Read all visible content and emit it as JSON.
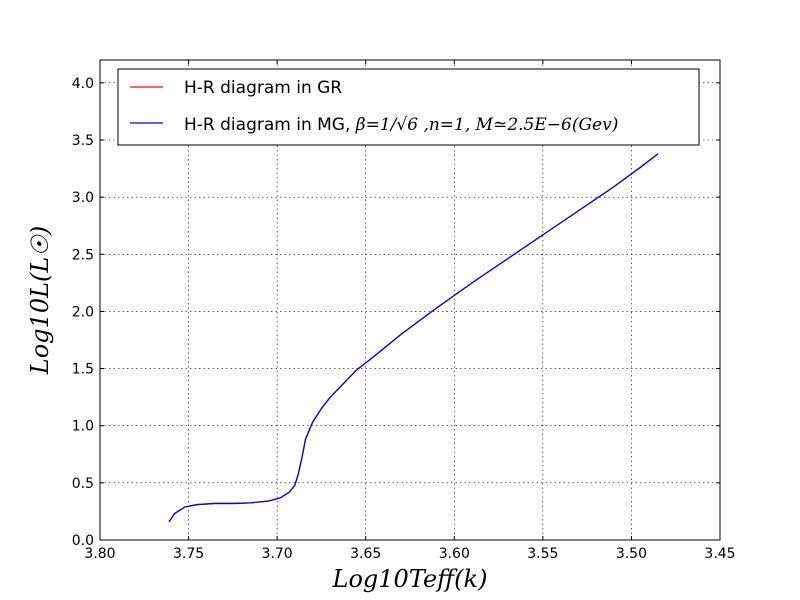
{
  "chart_data": {
    "type": "line",
    "title": "",
    "xlabel": "Log10Teff(k)",
    "ylabel": "Log10L(L☉)",
    "xlim": [
      3.8,
      3.45
    ],
    "ylim": [
      0.0,
      4.2
    ],
    "x_inverted": true,
    "grid": true,
    "legend_position": "upper-center",
    "xticks": [
      3.8,
      3.75,
      3.7,
      3.65,
      3.6,
      3.55,
      3.5,
      3.45
    ],
    "xtick_labels": [
      "3.80",
      "3.75",
      "3.70",
      "3.65",
      "3.60",
      "3.55",
      "3.50",
      "3.45"
    ],
    "yticks": [
      0.0,
      0.5,
      1.0,
      1.5,
      2.0,
      2.5,
      3.0,
      3.5,
      4.0
    ],
    "ytick_labels": [
      "0.0",
      "0.5",
      "1.0",
      "1.5",
      "2.0",
      "2.5",
      "3.0",
      "3.5",
      "4.0"
    ],
    "series": [
      {
        "name": "H-R diagram in GR",
        "color": "#ff0000",
        "x": [
          3.761,
          3.758,
          3.752,
          3.745,
          3.735,
          3.725,
          3.715,
          3.705,
          3.698,
          3.693,
          3.69,
          3.688,
          3.686,
          3.684,
          3.68,
          3.675,
          3.67,
          3.665,
          3.66,
          3.655,
          3.645,
          3.63,
          3.61,
          3.59,
          3.57,
          3.55,
          3.53,
          3.51,
          3.495,
          3.485
        ],
        "y": [
          0.16,
          0.23,
          0.29,
          0.31,
          0.32,
          0.32,
          0.325,
          0.34,
          0.37,
          0.42,
          0.48,
          0.58,
          0.72,
          0.88,
          1.03,
          1.15,
          1.25,
          1.33,
          1.41,
          1.49,
          1.61,
          1.8,
          2.03,
          2.25,
          2.46,
          2.67,
          2.88,
          3.09,
          3.26,
          3.38
        ]
      },
      {
        "name": "H-R diagram in MG, ",
        "name_math": "β=1/√6 ,n=1, M≃2.5E−6(Gev)",
        "color": "#0000ff",
        "x": [
          3.761,
          3.758,
          3.752,
          3.745,
          3.735,
          3.725,
          3.715,
          3.705,
          3.698,
          3.693,
          3.69,
          3.688,
          3.686,
          3.684,
          3.68,
          3.675,
          3.67,
          3.665,
          3.66,
          3.655,
          3.645,
          3.63,
          3.61,
          3.59,
          3.57,
          3.55,
          3.53,
          3.51,
          3.495,
          3.485
        ],
        "y": [
          0.16,
          0.23,
          0.29,
          0.31,
          0.32,
          0.32,
          0.325,
          0.34,
          0.37,
          0.42,
          0.48,
          0.58,
          0.72,
          0.88,
          1.03,
          1.15,
          1.25,
          1.33,
          1.41,
          1.49,
          1.61,
          1.8,
          2.03,
          2.25,
          2.46,
          2.67,
          2.88,
          3.09,
          3.26,
          3.38
        ]
      }
    ]
  }
}
